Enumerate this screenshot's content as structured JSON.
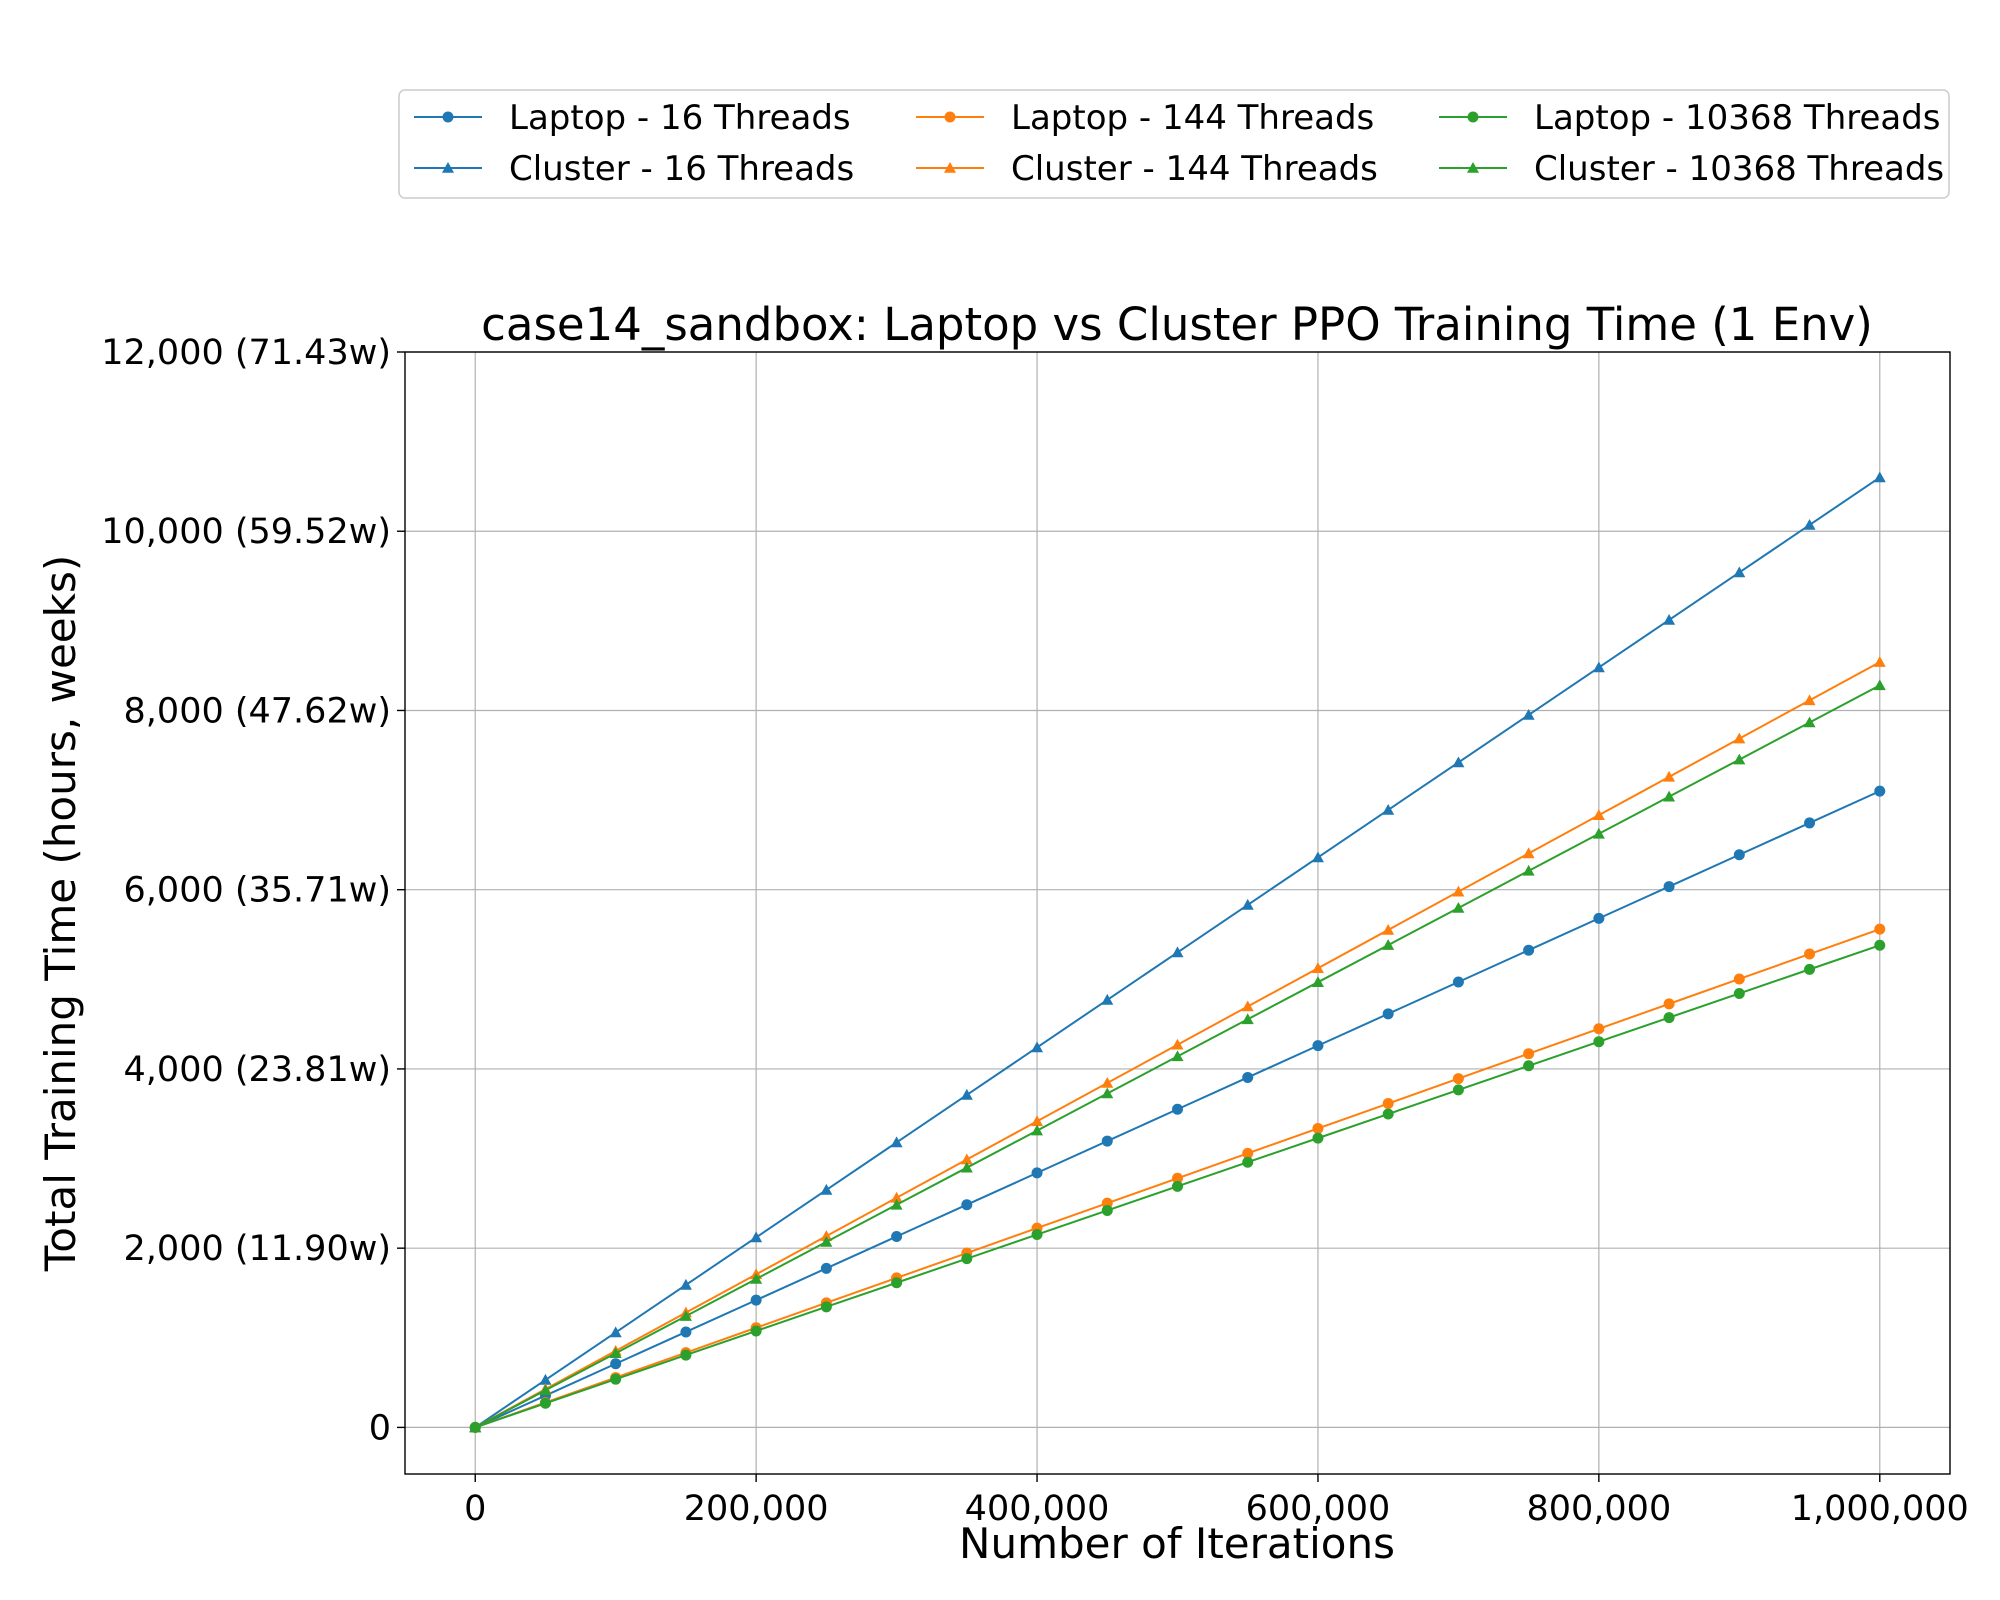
{
  "chart_data": {
    "type": "line",
    "title": "case14_sandbox: Laptop vs Cluster PPO Training Time (1 Env)",
    "xlabel": "Number of Iterations",
    "ylabel": "Total Training Time (hours, weeks)",
    "x": [
      0,
      50000,
      100000,
      150000,
      200000,
      250000,
      300000,
      350000,
      400000,
      450000,
      500000,
      550000,
      600000,
      650000,
      700000,
      750000,
      800000,
      850000,
      900000,
      950000,
      1000000
    ],
    "xlim": [
      -50000,
      1050000
    ],
    "ylim": [
      -520,
      12000
    ],
    "xticks": [
      0,
      200000,
      400000,
      600000,
      800000,
      1000000
    ],
    "xtick_labels": [
      "0",
      "200,000",
      "400,000",
      "600,000",
      "800,000",
      "1,000,000"
    ],
    "yticks": [
      0,
      2000,
      4000,
      6000,
      8000,
      10000,
      12000
    ],
    "ytick_labels": [
      "0",
      "2,000 (11.90w)",
      "4,000 (23.81w)",
      "6,000 (35.71w)",
      "8,000 (47.62w)",
      "10,000 (59.52w)",
      "12,000 (71.43w)"
    ],
    "grid": true,
    "legend_position": "top, above plot, 3 columns",
    "series": [
      {
        "name": "Laptop - 16 Threads",
        "color": "#1f77b4",
        "marker": "circle",
        "values": [
          0,
          355,
          710,
          1065,
          1420,
          1775,
          2130,
          2485,
          2840,
          3195,
          3550,
          3905,
          4260,
          4615,
          4970,
          5325,
          5680,
          6035,
          6390,
          6745,
          7100
        ]
      },
      {
        "name": "Cluster - 16 Threads",
        "color": "#1f77b4",
        "marker": "triangle",
        "values": [
          0,
          530,
          1060,
          1590,
          2120,
          2650,
          3180,
          3710,
          4240,
          4770,
          5300,
          5830,
          6360,
          6890,
          7420,
          7950,
          8480,
          9010,
          9540,
          10070,
          10600
        ]
      },
      {
        "name": "Laptop - 144 Threads",
        "color": "#ff7f0e",
        "marker": "circle",
        "values": [
          0,
          278,
          556,
          834,
          1112,
          1390,
          1668,
          1946,
          2224,
          2502,
          2780,
          3058,
          3336,
          3614,
          3892,
          4170,
          4448,
          4726,
          5004,
          5282,
          5560
        ]
      },
      {
        "name": "Cluster - 144 Threads",
        "color": "#ff7f0e",
        "marker": "triangle",
        "values": [
          0,
          427,
          854,
          1281,
          1708,
          2135,
          2562,
          2989,
          3416,
          3843,
          4270,
          4697,
          5124,
          5551,
          5978,
          6405,
          6832,
          7259,
          7686,
          8113,
          8540
        ]
      },
      {
        "name": "Laptop - 10368 Threads",
        "color": "#2ca02c",
        "marker": "circle",
        "values": [
          0,
          269,
          538,
          807,
          1076,
          1345,
          1614,
          1883,
          2152,
          2421,
          2690,
          2959,
          3228,
          3497,
          3766,
          4035,
          4304,
          4573,
          4842,
          5111,
          5380
        ]
      },
      {
        "name": "Cluster - 10368 Threads",
        "color": "#2ca02c",
        "marker": "triangle",
        "values": [
          0,
          414,
          828,
          1242,
          1656,
          2070,
          2484,
          2898,
          3312,
          3726,
          4140,
          4554,
          4968,
          5382,
          5796,
          6210,
          6624,
          7038,
          7452,
          7866,
          8280
        ]
      }
    ]
  }
}
